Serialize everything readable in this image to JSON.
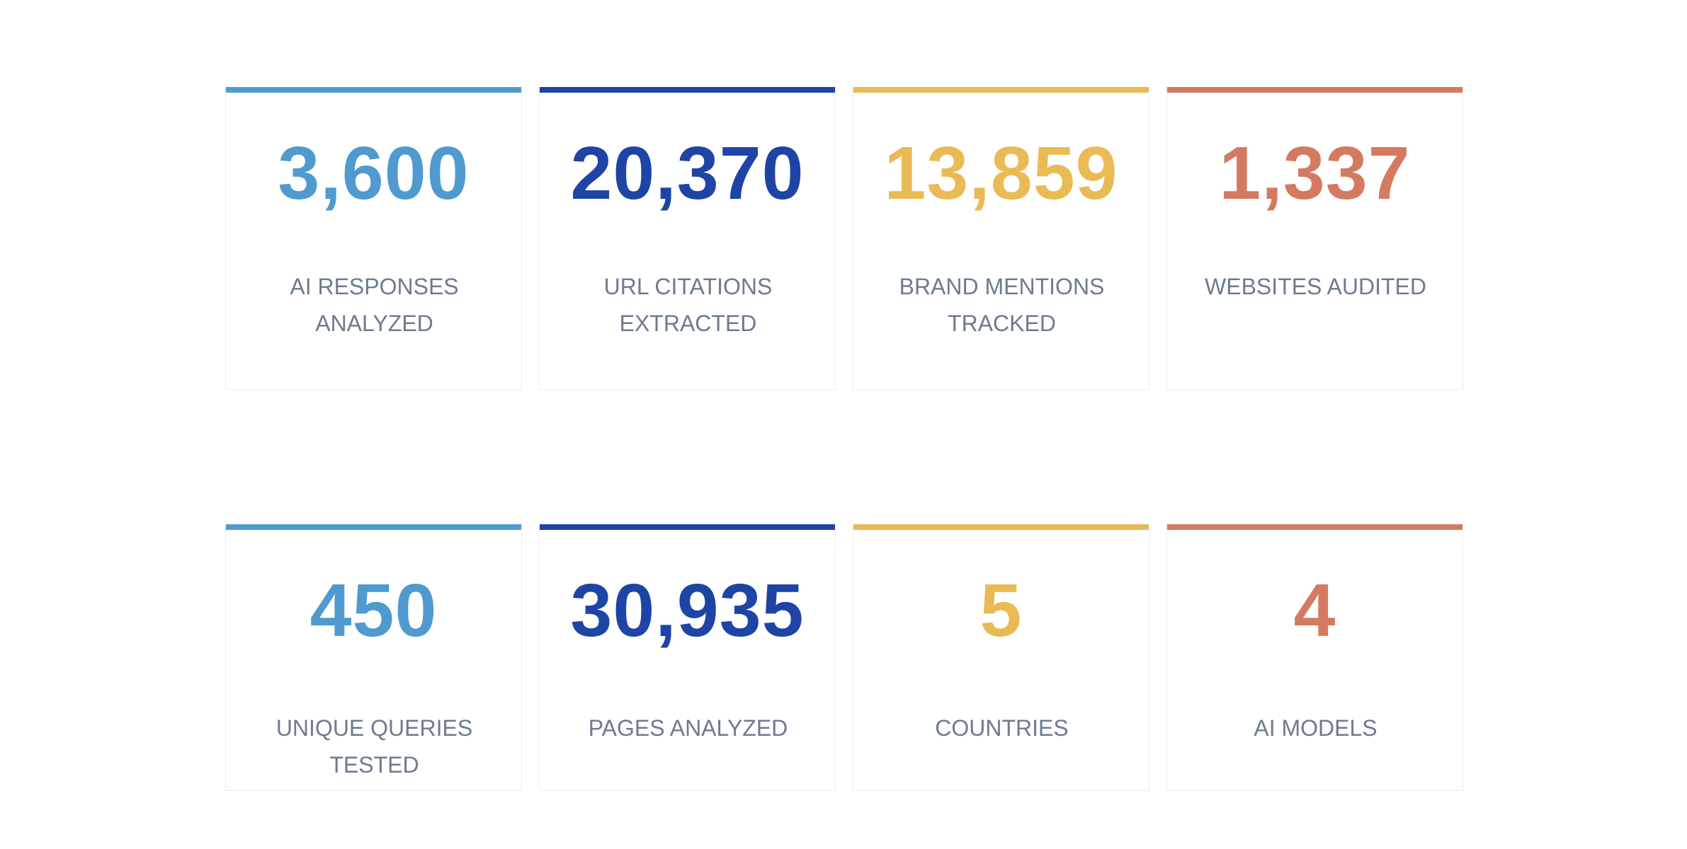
{
  "colors": {
    "light_blue": "#4f9ace",
    "dark_blue": "#1e44a6",
    "yellow": "#eaba55",
    "terracotta": "#d47a60",
    "label": "#6e7a8f"
  },
  "stats": [
    {
      "value": "3,600",
      "label": "AI RESPONSES ANALYZED",
      "color": "#4f9ace"
    },
    {
      "value": "20,370",
      "label": "URL CITATIONS\nEXTRACTED",
      "color": "#1e44a6"
    },
    {
      "value": "13,859",
      "label": "BRAND MENTIONS\nTRACKED",
      "color": "#eaba55"
    },
    {
      "value": "1,337",
      "label": "WEBSITES AUDITED",
      "color": "#d47a60"
    },
    {
      "value": "450",
      "label": "UNIQUE QUERIES TESTED",
      "color": "#4f9ace"
    },
    {
      "value": "30,935",
      "label": "PAGES ANALYZED",
      "color": "#1e44a6"
    },
    {
      "value": "5",
      "label": "COUNTRIES",
      "color": "#eaba55"
    },
    {
      "value": "4",
      "label": "AI MODELS",
      "color": "#d47a60"
    }
  ]
}
